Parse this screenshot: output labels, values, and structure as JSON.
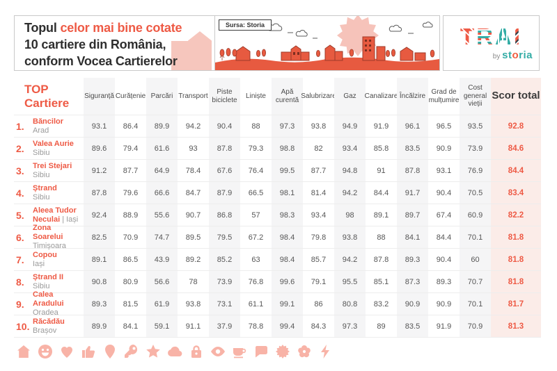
{
  "header": {
    "title": {
      "line1_black": "Topul",
      "line1_red": "celor mai bine cotate",
      "line2": "10 cartiere din România,",
      "line3": "conform Vocea Cartierelor"
    },
    "source_label": "Sursa: Storia",
    "logo": {
      "trai": "TRAI",
      "by": "by",
      "storia": "storia"
    }
  },
  "chart_data": {
    "type": "table",
    "title": "Topul celor mai bine cotate 10 cartiere din România, conform Vocea Cartierelor",
    "row_header": [
      "TOP",
      "Cartiere"
    ],
    "columns": [
      "Siguranță",
      "Curățenie",
      "Parcări",
      "Transport",
      "Piste biciclete",
      "Liniște",
      "Apă curentă",
      "Salubrizare",
      "Gaz",
      "Canalizare",
      "Încălzire",
      "Grad de mulțumire",
      "Cost general vieții"
    ],
    "score_column": "Scor total",
    "rows": [
      {
        "rank": "1.",
        "name": "Băncilor",
        "city": "Arad",
        "city_inline": false,
        "values": [
          "93.1",
          "86.4",
          "89.9",
          "94.2",
          "90.4",
          "88",
          "97.3",
          "93.8",
          "94.9",
          "91.9",
          "96.1",
          "96.5",
          "93.5"
        ],
        "score": "92.8"
      },
      {
        "rank": "2.",
        "name": "Valea Aurie",
        "city": "Sibiu",
        "city_inline": false,
        "values": [
          "89.6",
          "79.4",
          "61.6",
          "93",
          "87.8",
          "79.3",
          "98.8",
          "82",
          "93.4",
          "85.8",
          "83.5",
          "90.9",
          "73.9"
        ],
        "score": "84.6"
      },
      {
        "rank": "3.",
        "name": "Trei Stejari",
        "city": "Sibiu",
        "city_inline": false,
        "values": [
          "91.2",
          "87.7",
          "64.9",
          "78.4",
          "67.6",
          "76.4",
          "99.5",
          "87.7",
          "94.8",
          "91",
          "87.8",
          "93.1",
          "76.9"
        ],
        "score": "84.4"
      },
      {
        "rank": "4.",
        "name": "Ștrand",
        "city": "Sibiu",
        "city_inline": false,
        "values": [
          "87.8",
          "79.6",
          "66.6",
          "84.7",
          "87.9",
          "66.5",
          "98.1",
          "81.4",
          "94.2",
          "84.4",
          "91.7",
          "90.4",
          "70.5"
        ],
        "score": "83.4"
      },
      {
        "rank": "5.",
        "name": "Aleea Tudor Neculai",
        "city": "| Iași",
        "city_inline": true,
        "values": [
          "92.4",
          "88.9",
          "55.6",
          "90.7",
          "86.8",
          "57",
          "98.3",
          "93.4",
          "98",
          "89.1",
          "89.7",
          "67.4",
          "60.9"
        ],
        "score": "82.2"
      },
      {
        "rank": "6.",
        "name": "Zona Soarelui",
        "city": "Timișoara",
        "city_inline": false,
        "values": [
          "82.5",
          "70.9",
          "74.7",
          "89.5",
          "79.5",
          "67.2",
          "98.4",
          "79.8",
          "93.8",
          "88",
          "84.1",
          "84.4",
          "70.1"
        ],
        "score": "81.8"
      },
      {
        "rank": "7.",
        "name": "Copou",
        "city": "Iași",
        "city_inline": false,
        "values": [
          "89.1",
          "86.5",
          "43.9",
          "89.2",
          "85.2",
          "63",
          "98.4",
          "85.7",
          "94.2",
          "87.8",
          "89.3",
          "90.4",
          "60"
        ],
        "score": "81.8"
      },
      {
        "rank": "8.",
        "name": "Ștrand II",
        "city": "Sibiu",
        "city_inline": false,
        "values": [
          "90.8",
          "80.9",
          "56.6",
          "78",
          "73.9",
          "76.8",
          "99.6",
          "79.1",
          "95.5",
          "85.1",
          "87.3",
          "89.3",
          "70.7"
        ],
        "score": "81.8"
      },
      {
        "rank": "9.",
        "name": "Calea Aradului",
        "city": "Oradea",
        "city_inline": false,
        "values": [
          "89.3",
          "81.5",
          "61.9",
          "93.8",
          "73.1",
          "61.1",
          "99.1",
          "86",
          "80.8",
          "83.2",
          "90.9",
          "90.9",
          "70.1"
        ],
        "score": "81.7"
      },
      {
        "rank": "10.",
        "name": "Răcădău",
        "city": "Brașov",
        "city_inline": false,
        "values": [
          "89.9",
          "84.1",
          "59.1",
          "91.1",
          "37.9",
          "78.8",
          "99.4",
          "84.3",
          "97.3",
          "89",
          "83.5",
          "91.9",
          "70.9"
        ],
        "score": "81.3"
      }
    ]
  },
  "footer_icons": [
    "house",
    "smiley",
    "heart",
    "thumbs-up",
    "map-pin",
    "key",
    "star",
    "cloud",
    "padlock",
    "eye",
    "cup",
    "speech-bubble",
    "sun",
    "flower",
    "lightning"
  ],
  "colors": {
    "accent": "#ee5a45",
    "teal": "#35ada6",
    "stripe": "#f5f5f6",
    "score_bg": "#fbece8",
    "icon": "#f8b3a7",
    "illustration_red": "#e75a40",
    "light_pink": "#f6c6bd"
  }
}
